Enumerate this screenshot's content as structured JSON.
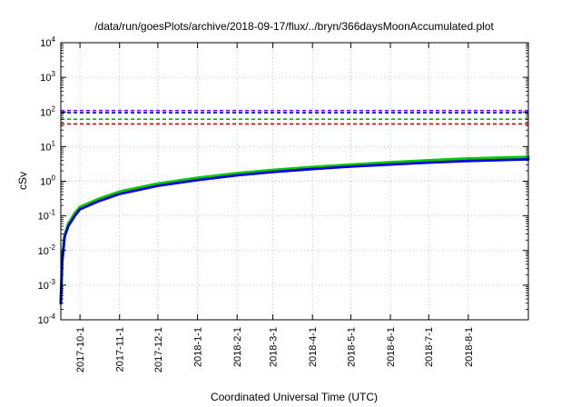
{
  "chart_data": {
    "type": "line",
    "title": "/data/run/goesPlots/archive/2018-09-17/flux/../bryn/366daysMoonAccumulated.plot",
    "xlabel": "Coordinated Universal Time (UTC)",
    "ylabel": "cSv",
    "y_scale": "log",
    "ylim": [
      0.0001,
      10000
    ],
    "xlim": [
      "2017-09-16",
      "2018-09-17"
    ],
    "grid": true,
    "x_tick_labels": [
      "2017-10-1",
      "2017-11-1",
      "2017-12-1",
      "2018-1-1",
      "2018-2-1",
      "2018-3-1",
      "2018-4-1",
      "2018-5-1",
      "2018-6-1",
      "2018-7-1",
      "2018-8-1"
    ],
    "y_ticks": [
      {
        "value": 0.0001,
        "base": "10",
        "exp": "-4"
      },
      {
        "value": 0.001,
        "base": "10",
        "exp": "-3"
      },
      {
        "value": 0.01,
        "base": "10",
        "exp": "-2"
      },
      {
        "value": 0.1,
        "base": "10",
        "exp": "-1"
      },
      {
        "value": 1,
        "base": "10",
        "exp": "0"
      },
      {
        "value": 10,
        "base": "10",
        "exp": "1"
      },
      {
        "value": 100,
        "base": "10",
        "exp": "2"
      },
      {
        "value": 1000,
        "base": "10",
        "exp": "3"
      },
      {
        "value": 10000,
        "base": "10",
        "exp": "4"
      }
    ],
    "reference_lines": [
      {
        "value": 110,
        "color": "#8b00ff",
        "style": "dashed"
      },
      {
        "value": 95,
        "color": "#0000cc",
        "style": "dashed"
      },
      {
        "value": 62,
        "color": "#00bb00",
        "style": "dashed"
      },
      {
        "value": 45,
        "color": "#dd0000",
        "style": "dashed"
      }
    ],
    "series": [
      {
        "color": "#00cc00",
        "points": [
          {
            "x": "2017-09-16",
            "y": 0.0003
          },
          {
            "x": "2017-09-17",
            "y": 0.005
          },
          {
            "x": "2017-09-19",
            "y": 0.028
          },
          {
            "x": "2017-09-22",
            "y": 0.06
          },
          {
            "x": "2017-09-27",
            "y": 0.12
          },
          {
            "x": "2017-10-01",
            "y": 0.18
          },
          {
            "x": "2017-10-15",
            "y": 0.3
          },
          {
            "x": "2017-11-01",
            "y": 0.5
          },
          {
            "x": "2017-12-01",
            "y": 0.85
          },
          {
            "x": "2018-01-01",
            "y": 1.25
          },
          {
            "x": "2018-02-01",
            "y": 1.7
          },
          {
            "x": "2018-03-01",
            "y": 2.1
          },
          {
            "x": "2018-04-01",
            "y": 2.55
          },
          {
            "x": "2018-05-01",
            "y": 3.0
          },
          {
            "x": "2018-06-01",
            "y": 3.5
          },
          {
            "x": "2018-07-01",
            "y": 4.0
          },
          {
            "x": "2018-08-01",
            "y": 4.5
          },
          {
            "x": "2018-09-17",
            "y": 5.0
          }
        ]
      },
      {
        "color": "#0000dd",
        "points": [
          {
            "x": "2017-09-16",
            "y": 0.0003
          },
          {
            "x": "2017-09-17",
            "y": 0.0045
          },
          {
            "x": "2017-09-19",
            "y": 0.025
          },
          {
            "x": "2017-09-22",
            "y": 0.052
          },
          {
            "x": "2017-09-27",
            "y": 0.1
          },
          {
            "x": "2017-10-01",
            "y": 0.155
          },
          {
            "x": "2017-10-15",
            "y": 0.26
          },
          {
            "x": "2017-11-01",
            "y": 0.43
          },
          {
            "x": "2017-12-01",
            "y": 0.74
          },
          {
            "x": "2018-01-01",
            "y": 1.08
          },
          {
            "x": "2018-02-01",
            "y": 1.48
          },
          {
            "x": "2018-03-01",
            "y": 1.85
          },
          {
            "x": "2018-04-01",
            "y": 2.25
          },
          {
            "x": "2018-05-01",
            "y": 2.65
          },
          {
            "x": "2018-06-01",
            "y": 3.05
          },
          {
            "x": "2018-07-01",
            "y": 3.45
          },
          {
            "x": "2018-08-01",
            "y": 3.85
          },
          {
            "x": "2018-09-17",
            "y": 4.3
          }
        ]
      }
    ]
  }
}
